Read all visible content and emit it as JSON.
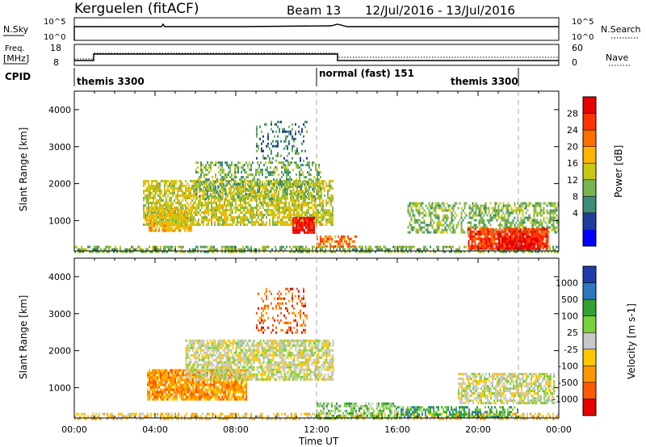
{
  "header": {
    "station": "Kerguelen (fitACF)",
    "beam": "Beam 13",
    "date_range": "12/Jul/2016 - 13/Jul/2016"
  },
  "aux_panels": {
    "nsky_label": "N.Sky",
    "nsearch_label": "N.Search",
    "freq_label_top": "Freq.",
    "freq_label_units": "[MHz]",
    "nave_label": "Nave",
    "cpid_label": "CPID",
    "noise_left_ticks": [
      "10^5",
      "10^0"
    ],
    "noise_right_ticks": [
      "10^5",
      "10^0"
    ],
    "freq_left_ticks": [
      "18",
      "8"
    ],
    "nave_right_ticks": [
      "60",
      "0"
    ],
    "cpid_modes": [
      {
        "label": "themis 3300",
        "start_hour": 0
      },
      {
        "label": "normal (fast) 151",
        "start_hour": 12
      },
      {
        "label": "themis 3300",
        "start_hour": 22
      }
    ]
  },
  "chart_data": [
    {
      "type": "heatmap",
      "name": "power",
      "ylabel": "Slant Range [km]",
      "xlim": [
        0,
        24
      ],
      "ylim": [
        180,
        4500
      ],
      "yticks": [
        1000,
        2000,
        3000,
        4000
      ],
      "x_tick_labels": [
        "00:00",
        "04:00",
        "08:00",
        "12:00",
        "16:00",
        "20:00",
        "00:00"
      ],
      "colorbar": {
        "label": "Power [dB]",
        "ticks": [
          "28",
          "24",
          "20",
          "16",
          "12",
          "8",
          "4"
        ],
        "colors": [
          "#0000ff",
          "#1e3c9b",
          "#3c8c78",
          "#78b450",
          "#c8c814",
          "#ffb400",
          "#ff6e00",
          "#ff3200",
          "#e60000"
        ]
      },
      "regions": [
        {
          "t0": 0.0,
          "t1": 24.0,
          "r0": 180,
          "r1": 320,
          "level": 3,
          "density": 0.55
        },
        {
          "t0": 3.6,
          "t1": 5.8,
          "r0": 700,
          "r1": 1350,
          "level": 5,
          "density": 0.85
        },
        {
          "t0": 3.4,
          "t1": 12.8,
          "r0": 900,
          "r1": 2100,
          "level": 4,
          "density": 0.7
        },
        {
          "t0": 6.0,
          "t1": 12.2,
          "r0": 1600,
          "r1": 2600,
          "level": 3,
          "density": 0.45
        },
        {
          "t0": 9.0,
          "t1": 11.5,
          "r0": 2600,
          "r1": 3700,
          "level": 2,
          "density": 0.25
        },
        {
          "t0": 10.8,
          "t1": 11.9,
          "r0": 650,
          "r1": 1100,
          "level": 8,
          "density": 0.9
        },
        {
          "t0": 12.0,
          "t1": 14.0,
          "r0": 280,
          "r1": 600,
          "level": 6,
          "density": 0.6
        },
        {
          "t0": 16.5,
          "t1": 24.0,
          "r0": 700,
          "r1": 1500,
          "level": 3,
          "density": 0.55
        },
        {
          "t0": 19.5,
          "t1": 23.5,
          "r0": 250,
          "r1": 800,
          "level": 7,
          "density": 0.85
        },
        {
          "t0": 21.0,
          "t1": 23.0,
          "r0": 250,
          "r1": 600,
          "level": 8,
          "density": 0.9
        }
      ]
    },
    {
      "type": "heatmap",
      "name": "velocity",
      "ylabel": "Slant Range [km]",
      "xlabel": "Time UT",
      "xlim": [
        0,
        24
      ],
      "ylim": [
        180,
        4500
      ],
      "yticks": [
        1000,
        2000,
        3000,
        4000
      ],
      "x_tick_labels": [
        "00:00",
        "04:00",
        "08:00",
        "12:00",
        "16:00",
        "20:00",
        "00:00"
      ],
      "colorbar": {
        "label": "Velocity [m s-1]",
        "ticks": [
          "1000",
          "500",
          "100",
          "25",
          "-25",
          "-100",
          "-500",
          "-1000"
        ],
        "colors": [
          "#e60000",
          "#ff5a00",
          "#ff9600",
          "#ffc800",
          "#c8c8c8",
          "#78d23c",
          "#32a032",
          "#2d78be",
          "#1e3caa"
        ]
      },
      "regions": [
        {
          "t0": 0.0,
          "t1": 24.0,
          "r0": 180,
          "r1": 320,
          "level": 3,
          "density": 0.5
        },
        {
          "t0": 3.6,
          "t1": 8.5,
          "r0": 700,
          "r1": 1500,
          "level": 2,
          "density": 0.85
        },
        {
          "t0": 5.5,
          "t1": 12.8,
          "r0": 1200,
          "r1": 2300,
          "level": 4,
          "density": 0.75
        },
        {
          "t0": 9.0,
          "t1": 11.5,
          "r0": 2500,
          "r1": 3700,
          "level": 1,
          "density": 0.25
        },
        {
          "t0": 12.0,
          "t1": 16.0,
          "r0": 200,
          "r1": 600,
          "level": 5,
          "density": 0.55
        },
        {
          "t0": 16.0,
          "t1": 22.0,
          "r0": 200,
          "r1": 500,
          "level": 6,
          "density": 0.6
        },
        {
          "t0": 19.0,
          "t1": 23.8,
          "r0": 600,
          "r1": 1400,
          "level": 4,
          "density": 0.7
        }
      ]
    }
  ]
}
